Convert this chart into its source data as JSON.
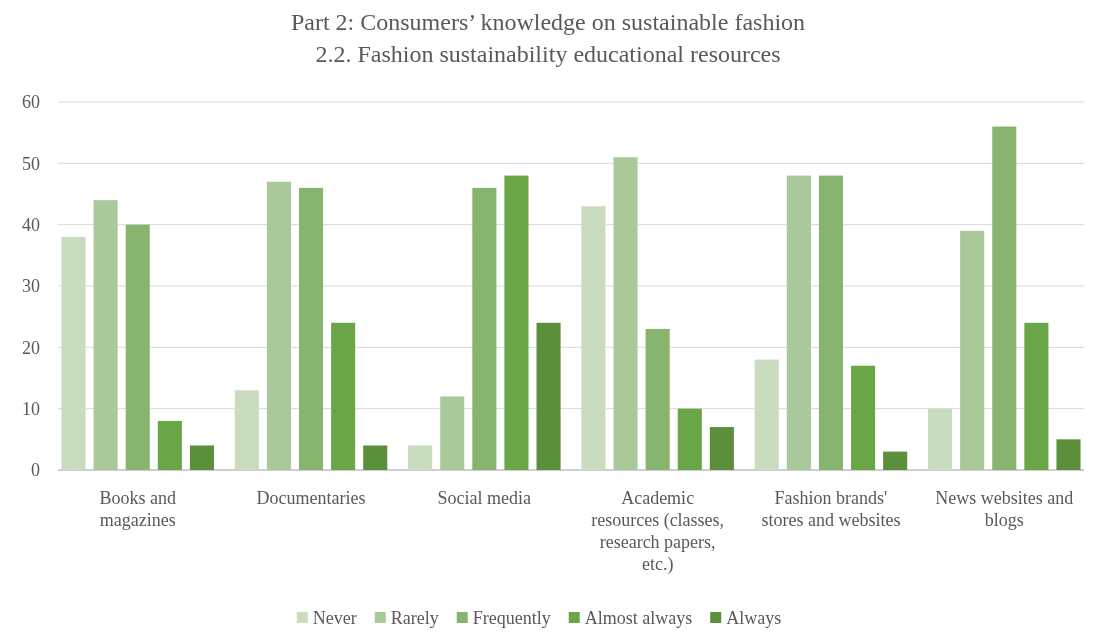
{
  "chart_data": {
    "type": "bar",
    "title": "Part 2: Consumers’ knowledge on sustainable fashion",
    "subtitle": "2.2. Fashion sustainability educational resources",
    "categories": [
      "Books and magazines",
      "Documentaries",
      "Social media",
      "Academic resources (classes, research papers, etc.)",
      "Fashion brands' stores and websites",
      "News websites and blogs"
    ],
    "series": [
      {
        "name": "Never",
        "color": "#c9dcc0",
        "values": [
          38,
          13,
          4,
          43,
          18,
          10
        ]
      },
      {
        "name": "Rarely",
        "color": "#a9c99a",
        "values": [
          44,
          47,
          12,
          51,
          48,
          39
        ]
      },
      {
        "name": "Frequently",
        "color": "#87b46e",
        "values": [
          40,
          46,
          46,
          23,
          48,
          56
        ]
      },
      {
        "name": "Almost always",
        "color": "#6aa547",
        "values": [
          8,
          24,
          48,
          10,
          17,
          24
        ]
      },
      {
        "name": "Always",
        "color": "#5b8f3b",
        "values": [
          4,
          4,
          24,
          7,
          3,
          5
        ]
      }
    ],
    "ylim": [
      0,
      60
    ],
    "yticks": [
      0,
      10,
      20,
      30,
      40,
      50,
      60
    ],
    "grid": "y",
    "legend": "bottom"
  }
}
